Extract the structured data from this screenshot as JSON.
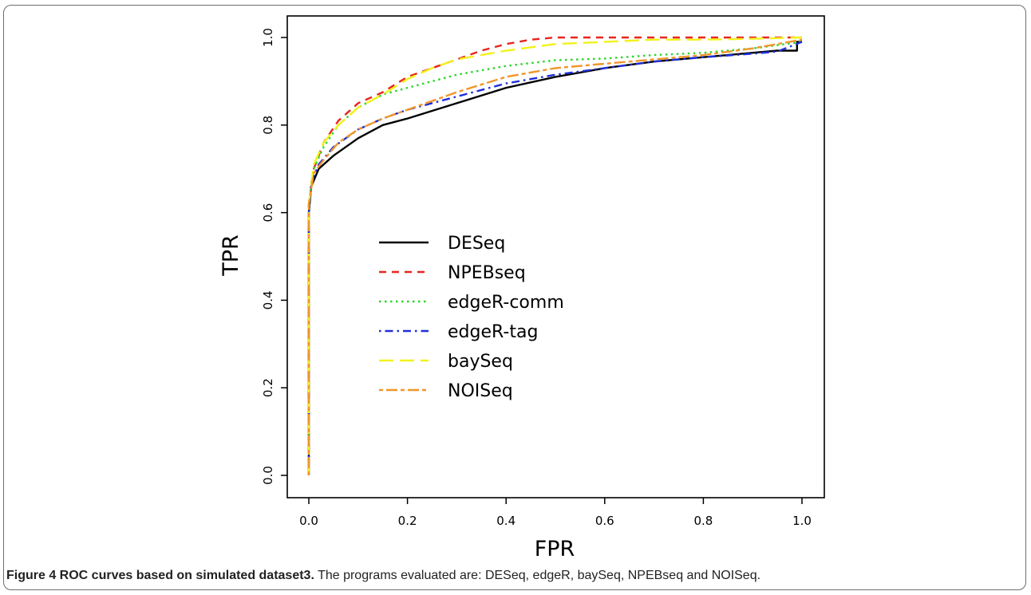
{
  "figure": {
    "caption_bold": "Figure 4 ROC curves based on simulated dataset3.",
    "caption_text": " The programs evaluated are: DESeq, edgeR, baySeq, NPEBseq and NOISeq."
  },
  "chart_data": {
    "type": "line",
    "xlabel": "FPR",
    "ylabel": "TPR",
    "xlim": [
      0,
      1
    ],
    "ylim": [
      0,
      1
    ],
    "xticks": [
      0.0,
      0.2,
      0.4,
      0.6,
      0.8,
      1.0
    ],
    "yticks": [
      0.0,
      0.2,
      0.4,
      0.6,
      0.8,
      1.0
    ],
    "xtick_labels": [
      "0.0",
      "0.2",
      "0.4",
      "0.6",
      "0.8",
      "1.0"
    ],
    "ytick_labels": [
      "0.0",
      "0.2",
      "0.4",
      "0.6",
      "0.8",
      "1.0"
    ],
    "grid": false,
    "legend_position": "center-left",
    "series": [
      {
        "name": "DESeq",
        "color": "#000000",
        "dash": "solid",
        "x": [
          0.0,
          0.0,
          0.005,
          0.02,
          0.05,
          0.1,
          0.15,
          0.2,
          0.3,
          0.4,
          0.5,
          0.6,
          0.7,
          0.8,
          0.9,
          0.95,
          0.99,
          0.99,
          1.0
        ],
        "y": [
          0.0,
          0.6,
          0.66,
          0.7,
          0.73,
          0.77,
          0.8,
          0.815,
          0.85,
          0.885,
          0.91,
          0.93,
          0.945,
          0.955,
          0.965,
          0.97,
          0.97,
          0.99,
          0.99
        ]
      },
      {
        "name": "NPEBseq",
        "color": "#e8251f",
        "dash": "dashed",
        "x": [
          0.0,
          0.0,
          0.01,
          0.03,
          0.06,
          0.1,
          0.15,
          0.2,
          0.25,
          0.3,
          0.35,
          0.4,
          0.45,
          0.5,
          0.6,
          0.8,
          1.0
        ],
        "y": [
          0.0,
          0.62,
          0.7,
          0.76,
          0.81,
          0.85,
          0.875,
          0.91,
          0.93,
          0.95,
          0.97,
          0.985,
          0.995,
          1.0,
          1.0,
          1.0,
          1.0
        ]
      },
      {
        "name": "edgeR-comm",
        "color": "#2bd62b",
        "dash": "dotted",
        "x": [
          0.0,
          0.0,
          0.01,
          0.03,
          0.06,
          0.1,
          0.15,
          0.2,
          0.3,
          0.4,
          0.5,
          0.6,
          0.7,
          0.8,
          0.9,
          1.0
        ],
        "y": [
          0.0,
          0.62,
          0.7,
          0.75,
          0.8,
          0.84,
          0.87,
          0.885,
          0.915,
          0.935,
          0.948,
          0.952,
          0.96,
          0.965,
          0.975,
          0.99
        ]
      },
      {
        "name": "edgeR-tag",
        "color": "#1f2fd8",
        "dash": "dashdot",
        "x": [
          0.0,
          0.0,
          0.005,
          0.02,
          0.05,
          0.1,
          0.15,
          0.2,
          0.3,
          0.4,
          0.5,
          0.6,
          0.7,
          0.8,
          0.9,
          0.95,
          1.0
        ],
        "y": [
          0.0,
          0.6,
          0.67,
          0.71,
          0.75,
          0.79,
          0.815,
          0.835,
          0.865,
          0.895,
          0.915,
          0.93,
          0.945,
          0.955,
          0.963,
          0.968,
          0.99
        ]
      },
      {
        "name": "baySeq",
        "color": "#f2f21a",
        "dash": "longdash",
        "x": [
          0.0,
          0.0,
          0.01,
          0.03,
          0.06,
          0.1,
          0.15,
          0.2,
          0.25,
          0.3,
          0.35,
          0.4,
          0.5,
          0.6,
          0.7,
          0.8,
          0.9,
          1.0
        ],
        "y": [
          0.0,
          0.62,
          0.71,
          0.76,
          0.8,
          0.84,
          0.87,
          0.905,
          0.93,
          0.95,
          0.96,
          0.97,
          0.985,
          0.99,
          0.995,
          0.995,
          0.997,
          1.0
        ]
      },
      {
        "name": "NOISeq",
        "color": "#f0962a",
        "dash": "twodash",
        "x": [
          0.0,
          0.0,
          0.01,
          0.03,
          0.06,
          0.1,
          0.15,
          0.2,
          0.3,
          0.4,
          0.5,
          0.6,
          0.7,
          0.8,
          0.9,
          1.0
        ],
        "y": [
          0.0,
          0.62,
          0.69,
          0.72,
          0.76,
          0.79,
          0.815,
          0.835,
          0.875,
          0.91,
          0.93,
          0.94,
          0.95,
          0.96,
          0.975,
          0.995
        ]
      }
    ]
  }
}
